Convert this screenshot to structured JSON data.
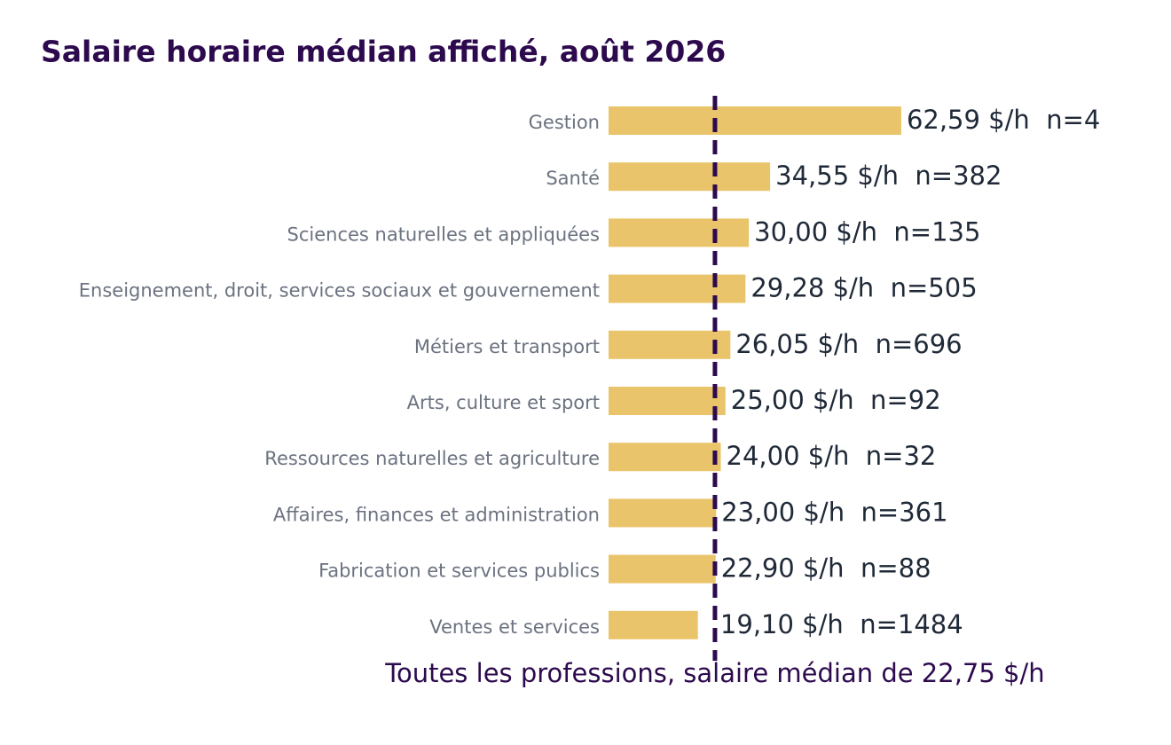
{
  "chart_data": {
    "type": "hbar",
    "title": "Salaire horaire médian affiché, août 2026",
    "categories": [
      "Gestion",
      "Santé",
      "Sciences naturelles et appliquées",
      "Enseignement, droit, services sociaux et gouvernement",
      "Métiers et transport",
      "Arts, culture et sport",
      "Ressources naturelles et agriculture",
      "Affaires, finances et administration",
      "Fabrication et services publics",
      "Ventes et services"
    ],
    "values": [
      62.59,
      34.55,
      30.0,
      29.28,
      26.05,
      25.0,
      24.0,
      23.0,
      22.9,
      19.1
    ],
    "value_labels": [
      "62,59 $/h  n=4",
      "34,55 $/h  n=382",
      "30,00 $/h  n=135",
      "29,28 $/h  n=505",
      "26,05 $/h  n=696",
      "25,00 $/h  n=92",
      "24,00 $/h  n=32",
      "23,00 $/h  n=361",
      "22,90 $/h  n=88",
      "19,10 $/h  n=1484"
    ],
    "color": "#e9c46a",
    "xlim": [
      0,
      70
    ],
    "reference": {
      "value": 22.75,
      "label": "Toutes les professions, salaire médian de 22,75 $/h",
      "color": "#2d0a4e"
    }
  }
}
